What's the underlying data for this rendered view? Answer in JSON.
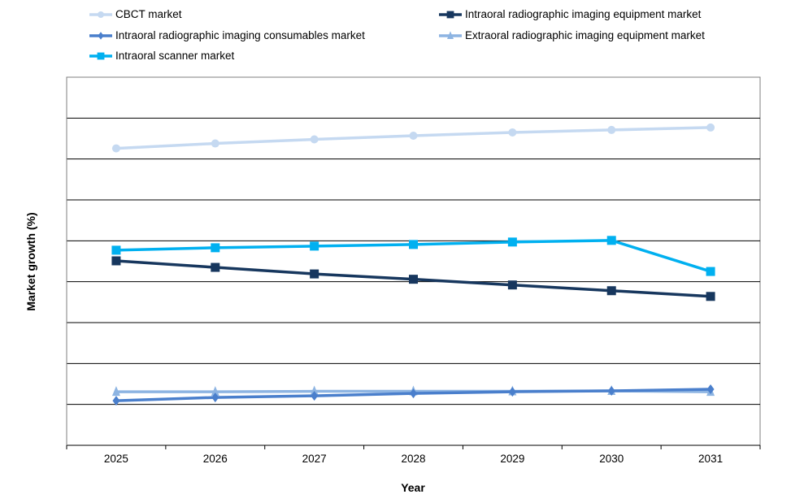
{
  "chart_data": {
    "type": "line",
    "title": "",
    "xlabel": "Year",
    "ylabel": "Market growth (%)",
    "categories": [
      "2025",
      "2026",
      "2027",
      "2028",
      "2029",
      "2030",
      "2031"
    ],
    "ylim": [
      0,
      9
    ],
    "y_tick_labels_shown": false,
    "grid": "horizontal",
    "legend_position": "top",
    "series": [
      {
        "name": "CBCT market",
        "color": "#c5d9f1",
        "marker": "circle",
        "values": [
          7.26,
          7.38,
          7.48,
          7.57,
          7.65,
          7.71,
          7.77
        ]
      },
      {
        "name": "Intraoral radiographic imaging equipment market",
        "color": "#17375e",
        "marker": "square",
        "values": [
          4.51,
          4.35,
          4.19,
          4.06,
          3.92,
          3.78,
          3.64
        ]
      },
      {
        "name": "Intraoral radiographic imaging consumables market",
        "color": "#4a7fcc",
        "marker": "diamond",
        "values": [
          1.09,
          1.17,
          1.21,
          1.27,
          1.31,
          1.33,
          1.37
        ]
      },
      {
        "name": "Extraoral radiographic imaging equipment market",
        "color": "#8db4e2",
        "marker": "triangle",
        "values": [
          1.31,
          1.31,
          1.32,
          1.32,
          1.32,
          1.33,
          1.31
        ]
      },
      {
        "name": "Intraoral scanner market",
        "color": "#00b0f0",
        "marker": "square",
        "values": [
          4.77,
          4.83,
          4.87,
          4.91,
          4.97,
          5.01,
          4.25
        ]
      }
    ]
  }
}
